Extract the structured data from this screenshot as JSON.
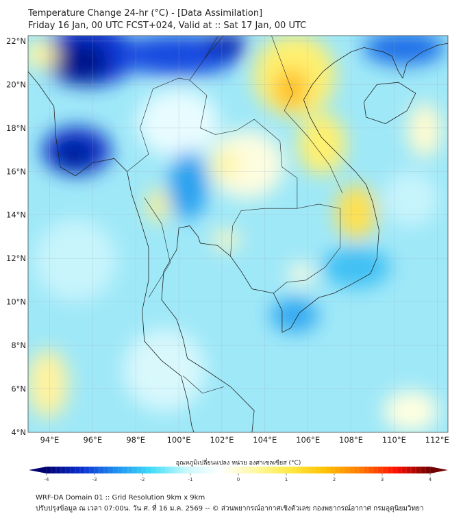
{
  "header": {
    "title": "Temperature Change 24-hr (°C) - [Data Assimilation]",
    "subtitle": "Friday 16 Jan, 00 UTC FCST+024, Valid at :: Sat 17 Jan, 00 UTC"
  },
  "map": {
    "lat_labels": [
      "22°N",
      "20°N",
      "18°N",
      "16°N",
      "14°N",
      "12°N",
      "10°N",
      "8°N",
      "6°N",
      "4°N"
    ],
    "lon_labels": [
      "94°E",
      "96°E",
      "98°E",
      "100°E",
      "102°E",
      "104°E",
      "106°E",
      "108°E",
      "110°E",
      "112°E"
    ],
    "lon_range": [
      93.0,
      112.5
    ],
    "lat_range": [
      4.0,
      22.25
    ]
  },
  "colorbar": {
    "title": "อุณหภูมิเปลี่ยนแปลง หน่วย องศาเซลเซียส (°C)",
    "ticks": [
      "-4",
      "-3",
      "-2",
      "-1",
      "0",
      "1",
      "2",
      "3",
      "4"
    ],
    "range": [
      -4,
      4
    ],
    "colors": [
      "#000070",
      "#0a2fd0",
      "#1e90f0",
      "#3fdcf8",
      "#c8f8fc",
      "#ffffff",
      "#fff8a0",
      "#ffe840",
      "#ffc000",
      "#ff7800",
      "#ff1000",
      "#700000"
    ]
  },
  "footer": {
    "line1": "WRF-DA Domain 01 :: Grid Resolution 9km x 9km",
    "line2": "ปรับปรุงข้อมูล ณ เวลา 07:00น. วัน ศ. ที่ 16 ม.ค. 2569 -- © ส่วนพยากรณ์อากาศเชิงตัวเลข กองพยากรณ์อากาศ กรมอุตุนิยมวิทยา"
  }
}
